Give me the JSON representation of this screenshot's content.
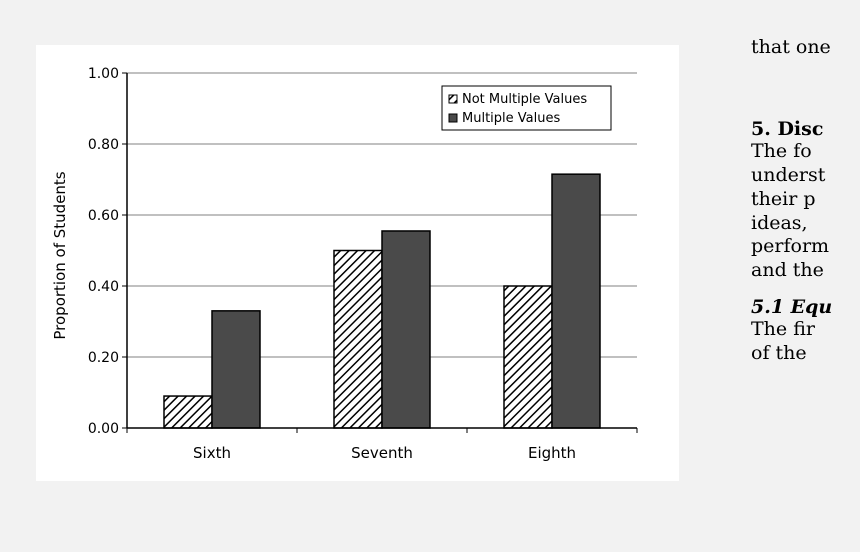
{
  "chart_data": {
    "type": "bar",
    "categories": [
      "Sixth",
      "Seventh",
      "Eighth"
    ],
    "series": [
      {
        "name": "Not Multiple Values",
        "values": [
          0.09,
          0.5,
          0.4
        ]
      },
      {
        "name": "Multiple Values",
        "values": [
          0.33,
          0.555,
          0.715
        ]
      }
    ],
    "ylabel": "Proportion of Students",
    "xlabel": "",
    "ylim": [
      0,
      1
    ],
    "yticks": [
      "0.00",
      "0.20",
      "0.40",
      "0.60",
      "0.80",
      "1.00"
    ],
    "grid": "horizontal",
    "legend": "top-right",
    "colors": {
      "not_multiple": "#ffffff",
      "multiple": "#4a4a4a",
      "hatch": "#000000"
    }
  },
  "side_text": {
    "line1": "that one",
    "heading": "5. Disc",
    "line2": "The fo",
    "line3": "underst",
    "line4": "their p",
    "line5": "ideas,",
    "line6": "perform",
    "line7": "and the",
    "subheading": "5.1 Equ",
    "line8": "The fir",
    "line9": "of the"
  }
}
